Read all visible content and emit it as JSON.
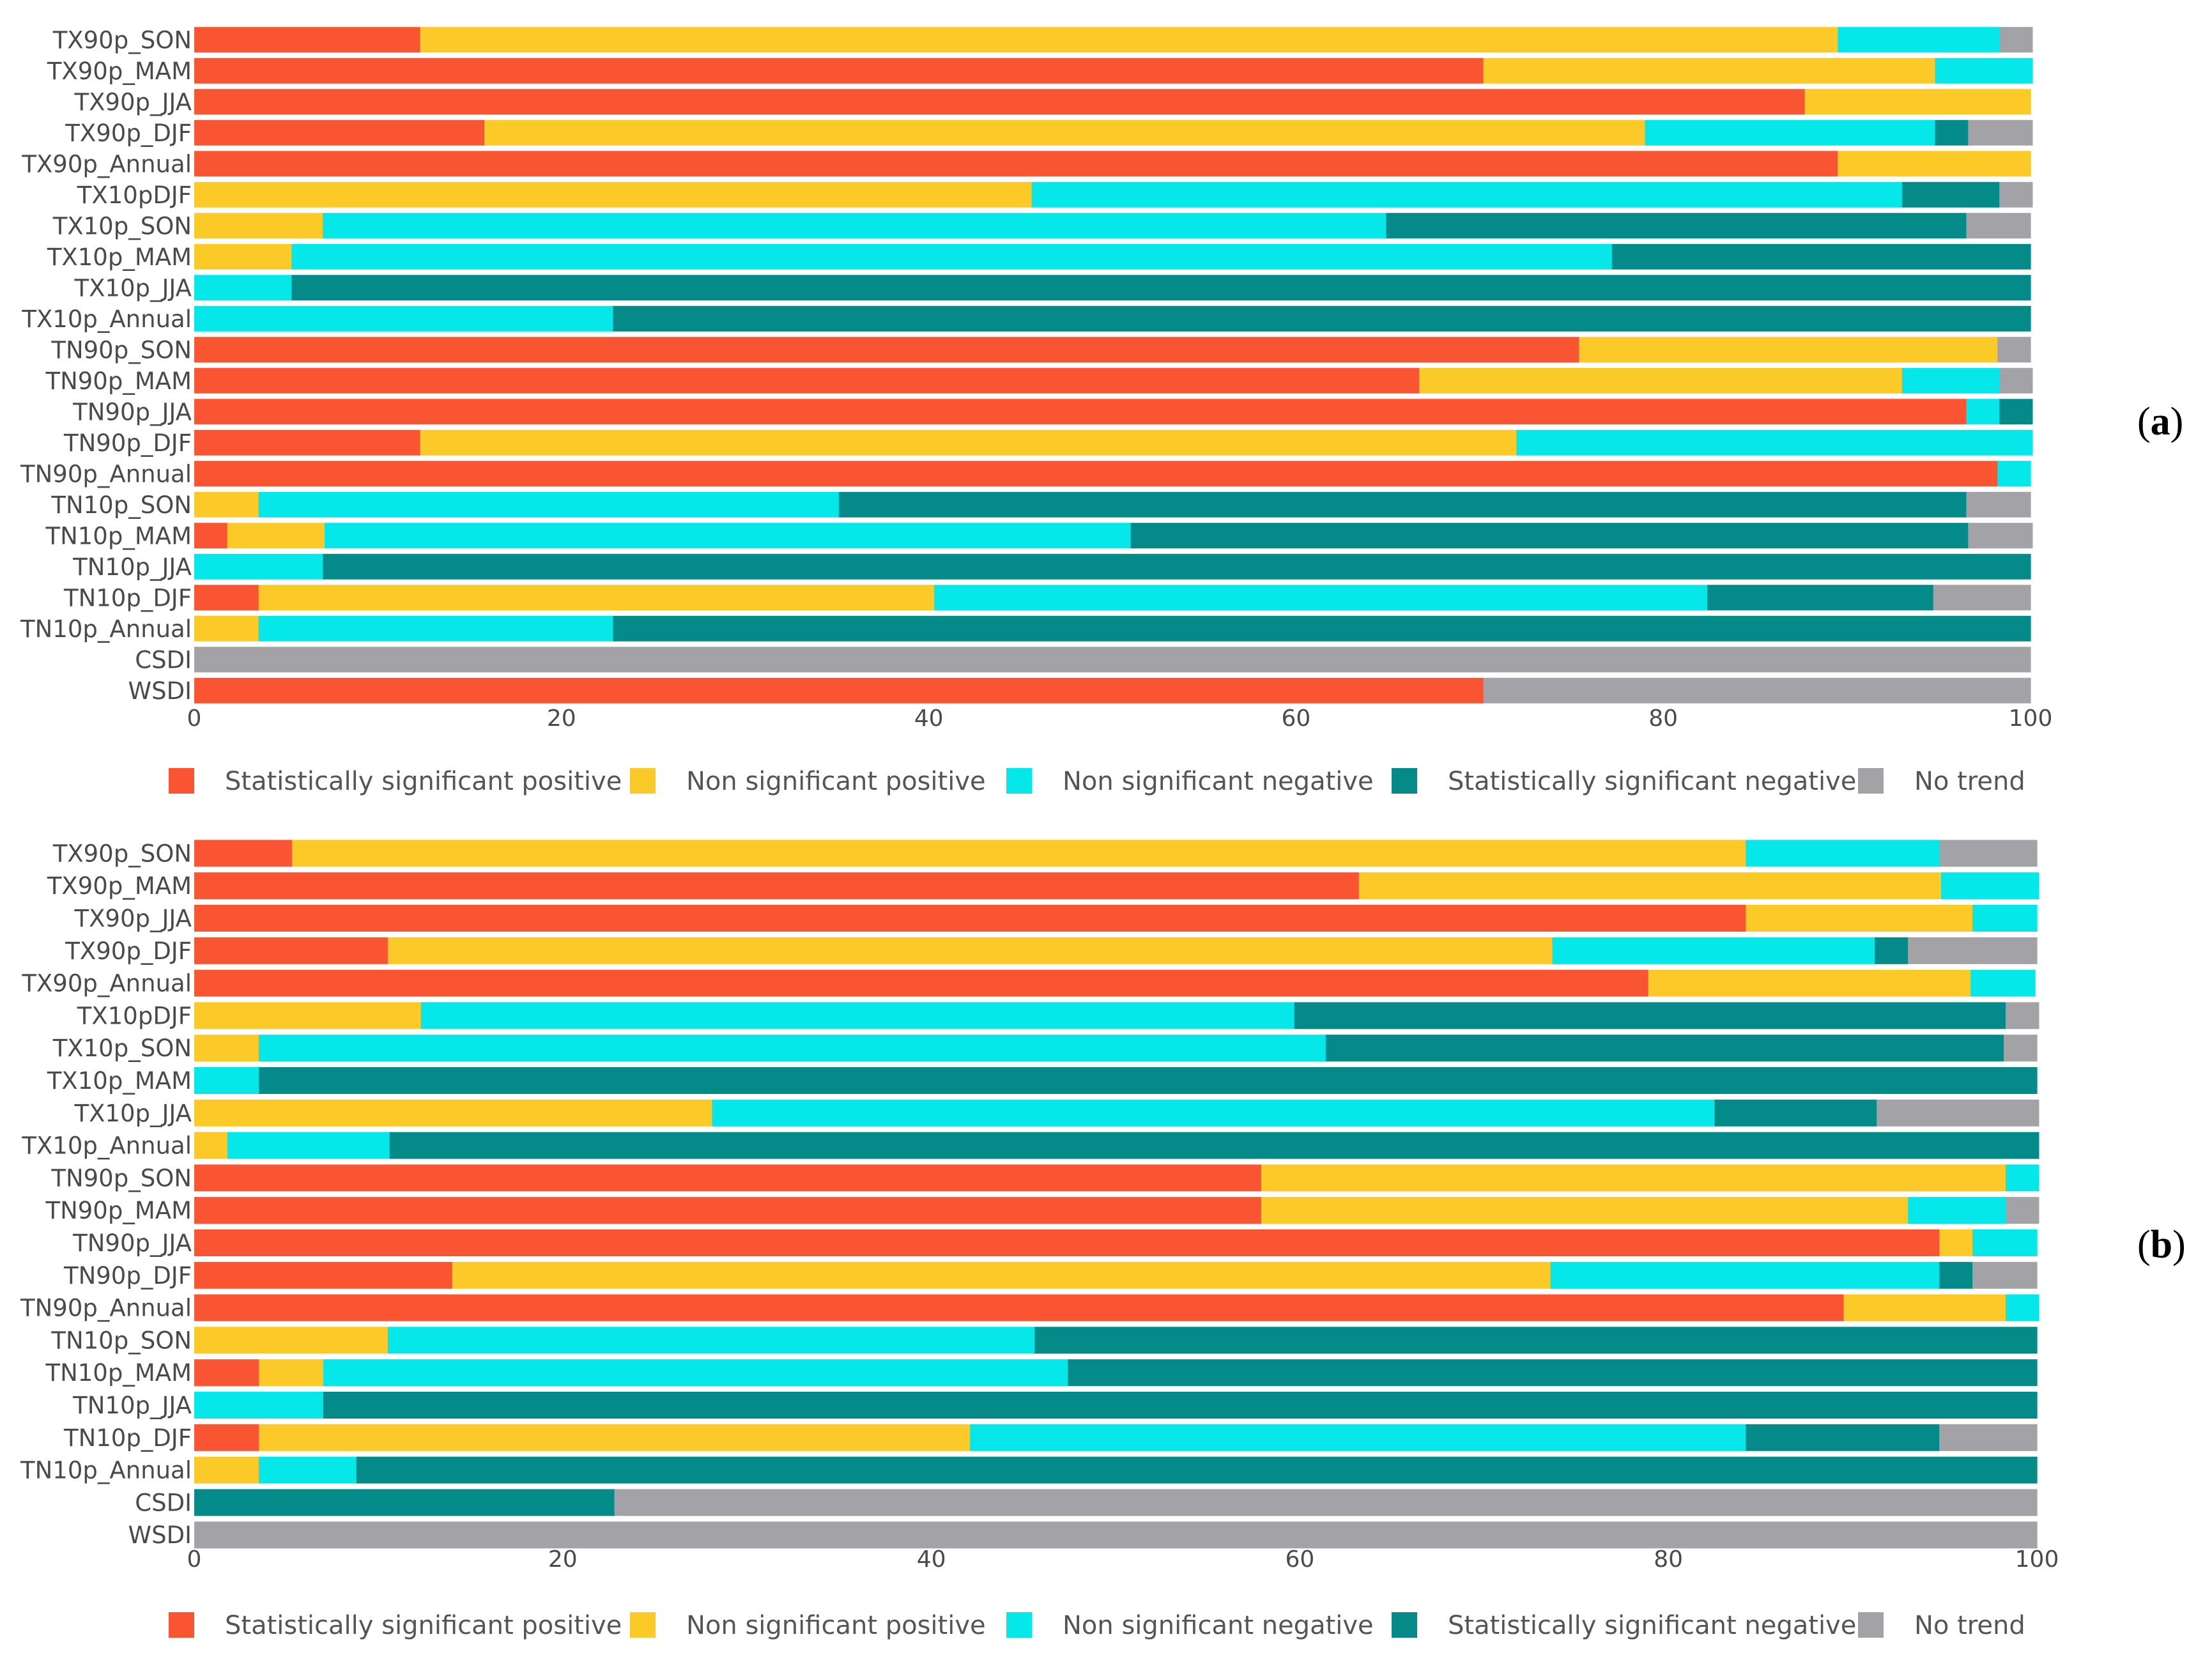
{
  "series_legend": [
    {
      "name": "Statistically significant positive",
      "color": "#fa5533"
    },
    {
      "name": "Non significant positive",
      "color": "#fbc928"
    },
    {
      "name": "Non significant negative",
      "color": "#06e7ea"
    },
    {
      "name": "Statistically significant negative",
      "color": "#048a88"
    },
    {
      "name": "No trend",
      "color": "#a3a2a6"
    }
  ],
  "chart_data": [
    {
      "type": "bar",
      "orientation": "horizontal",
      "stacked": true,
      "panel_label": {
        "open": "(",
        "letter": "a",
        "close": ")"
      },
      "categories": [
        "TX90p_SON",
        "TX90p_MAM",
        "TX90p_JJA",
        "TX90p_DJF",
        "TX90p_Annual",
        "TX10pDJF",
        "TX10p_SON",
        "TX10p_MAM",
        "TX10p_JJA",
        "TX10p_Annual",
        "TN90p_SON",
        "TN90p_MAM",
        "TN90p_JJA",
        "TN90p_DJF",
        "TN90p_Annual",
        "TN10p_SON",
        "TN10p_MAM",
        "TN10p_JJA",
        "TN10p_DJF",
        "TN10p_Annual",
        "CSDI",
        "WSDI"
      ],
      "xlim": [
        0,
        100
      ],
      "xticks": [
        "0",
        "20",
        "40",
        "60",
        "80",
        "100"
      ],
      "legend_position": "bottom",
      "series": [
        {
          "name": "Statistically significant positive",
          "values": [
            12.3,
            70.2,
            87.7,
            15.8,
            89.5,
            0,
            0,
            0,
            0,
            0,
            75.4,
            66.7,
            96.5,
            12.3,
            98.2,
            0,
            1.8,
            0,
            3.5,
            0,
            0,
            70.2
          ]
        },
        {
          "name": "Non significant positive",
          "values": [
            77.2,
            24.6,
            12.3,
            63.2,
            10.5,
            45.6,
            7.0,
            5.3,
            0,
            0,
            22.8,
            26.3,
            0,
            59.7,
            0,
            3.5,
            5.3,
            0,
            36.8,
            3.5,
            0,
            0
          ]
        },
        {
          "name": "Non significant negative",
          "values": [
            8.8,
            5.3,
            0,
            15.8,
            0,
            47.4,
            57.9,
            71.9,
            5.3,
            22.8,
            0,
            5.3,
            1.8,
            28.1,
            1.8,
            31.6,
            43.9,
            7.0,
            42.1,
            19.3,
            0,
            0
          ]
        },
        {
          "name": "Statistically significant negative",
          "values": [
            0,
            0,
            0,
            1.8,
            0,
            5.3,
            31.6,
            22.8,
            94.7,
            77.2,
            0,
            0,
            1.8,
            0,
            0,
            61.4,
            45.6,
            93.0,
            12.3,
            77.2,
            0,
            0
          ]
        },
        {
          "name": "No trend",
          "values": [
            1.8,
            0,
            0,
            3.5,
            0,
            1.8,
            3.5,
            0,
            0,
            0,
            1.8,
            1.8,
            0,
            0,
            0,
            3.5,
            3.5,
            0,
            5.3,
            0,
            100,
            29.8
          ]
        }
      ]
    },
    {
      "type": "bar",
      "orientation": "horizontal",
      "stacked": true,
      "panel_label": {
        "open": "(",
        "letter": "b",
        "close": ")"
      },
      "categories": [
        "TX90p_SON",
        "TX90p_MAM",
        "TX90p_JJA",
        "TX90p_DJF",
        "TX90p_Annual",
        "TX10pDJF",
        "TX10p_SON",
        "TX10p_MAM",
        "TX10p_JJA",
        "TX10p_Annual",
        "TN90p_SON",
        "TN90p_MAM",
        "TN90p_JJA",
        "TN90p_DJF",
        "TN90p_Annual",
        "TN10p_SON",
        "TN10p_MAM",
        "TN10p_JJA",
        "TN10p_DJF",
        "TN10p_Annual",
        "CSDI",
        "WSDI"
      ],
      "xlim": [
        0,
        100
      ],
      "xticks": [
        "0",
        "20",
        "40",
        "60",
        "80",
        "100"
      ],
      "legend_position": "bottom",
      "series": [
        {
          "name": "Statistically significant positive",
          "values": [
            5.3,
            63.2,
            84.2,
            10.5,
            78.9,
            0,
            0,
            0,
            0,
            0,
            57.9,
            57.9,
            94.7,
            14.0,
            89.5,
            0,
            3.5,
            0,
            3.5,
            0,
            0,
            0
          ]
        },
        {
          "name": "Non significant positive",
          "values": [
            78.9,
            31.6,
            12.3,
            63.2,
            17.5,
            12.3,
            3.5,
            0,
            28.1,
            1.8,
            40.4,
            35.1,
            1.8,
            59.6,
            8.8,
            10.5,
            3.5,
            0,
            38.6,
            3.5,
            0,
            0
          ]
        },
        {
          "name": "Non significant negative",
          "values": [
            10.5,
            5.3,
            3.5,
            17.5,
            3.5,
            47.4,
            57.9,
            3.5,
            54.4,
            8.8,
            1.8,
            5.3,
            3.5,
            21.1,
            1.8,
            35.1,
            40.4,
            7.0,
            42.1,
            5.3,
            0,
            0
          ]
        },
        {
          "name": "Statistically significant negative",
          "values": [
            0,
            0,
            0,
            1.8,
            0,
            38.6,
            36.8,
            96.5,
            8.8,
            89.5,
            0,
            0,
            0,
            1.8,
            0,
            54.4,
            52.6,
            93.0,
            10.5,
            91.2,
            22.8,
            0
          ]
        },
        {
          "name": "No trend",
          "values": [
            5.3,
            0,
            0,
            7.0,
            0,
            1.8,
            1.8,
            0,
            8.8,
            0,
            0,
            1.8,
            0,
            3.5,
            0,
            0,
            0,
            0,
            5.3,
            0,
            77.2,
            100
          ]
        }
      ]
    }
  ]
}
